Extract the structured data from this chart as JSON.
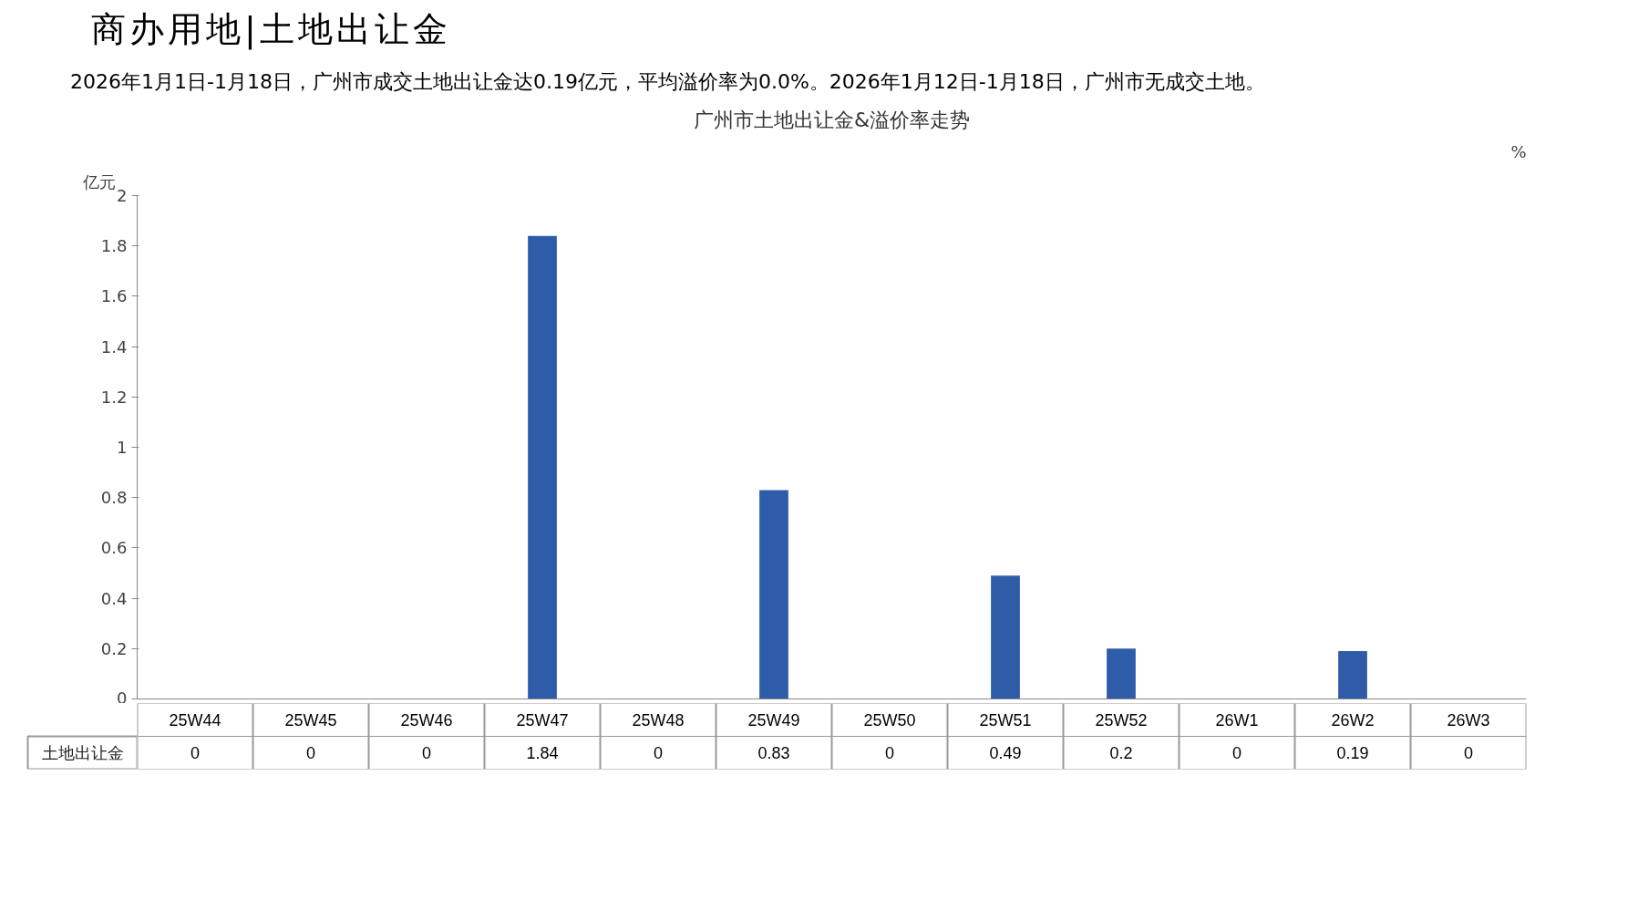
{
  "chart_data": {
    "type": "bar",
    "title": "广州市土地出让金&溢价率走势",
    "subtitle": "2026年1月1日-1月18日，广州市成交土地出让金达0.19亿元，平均溢价率为0.0%。2026年1月12日-1月18日，广州市无成交土地。",
    "annotations": [
      "商办用地|土地出让金"
    ],
    "ylabel": "亿元",
    "y2label": "%",
    "categories": [
      "25W44",
      "25W45",
      "25W46",
      "25W47",
      "25W48",
      "25W49",
      "25W50",
      "25W51",
      "25W52",
      "26W1",
      "26W2",
      "26W3"
    ],
    "series": [
      {
        "name": "土地出让金",
        "color": "#2e5ca8",
        "values": [
          0,
          0,
          0,
          1.84,
          0,
          0.83,
          0,
          0.49,
          0.2,
          0,
          0.19,
          0
        ]
      }
    ],
    "ylim": [
      0,
      2
    ],
    "yticks": [
      0,
      0.2,
      0.4,
      0.6,
      0.8,
      1,
      1.2,
      1.4,
      1.6,
      1.8,
      2
    ],
    "data_labels": true,
    "grid": false
  }
}
